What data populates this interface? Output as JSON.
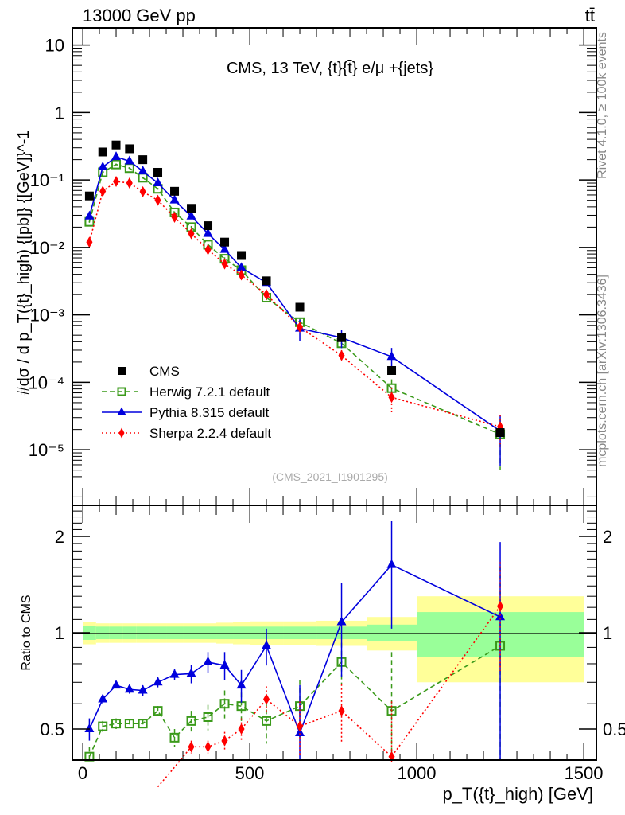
{
  "header": {
    "left": "13000 GeV pp",
    "right": "tt̄"
  },
  "side_labels": {
    "rivet": "Rivet 4.1.0, ≥ 100k events",
    "mcplots": "mcplots.cern.ch [arXiv:1306.3436]"
  },
  "chart_data": [
    {
      "type": "scatter",
      "panel": "main",
      "title": "CMS, 13 TeV, {t}{t̄} e/μ +{jets}",
      "analysis_tag": "(CMS_2021_I1901295)",
      "xlabel": "",
      "ylabel": "#dσ / d p_T({t}_high) {[pb]} {[GeV]}^-1",
      "yscale": "log",
      "xlim": [
        -31,
        1538
      ],
      "ylim": [
        1.5e-06,
        18
      ],
      "y_ticks": [
        {
          "value": 10,
          "label": "10"
        },
        {
          "value": 1,
          "label": "1"
        },
        {
          "value": 0.1,
          "label": "10⁻¹"
        },
        {
          "value": 0.01,
          "label": "10⁻²"
        },
        {
          "value": 0.001,
          "label": "10⁻³"
        },
        {
          "value": 0.0001,
          "label": "10⁻⁴"
        },
        {
          "value": 1e-05,
          "label": "10⁻⁵"
        }
      ],
      "x": [
        20,
        60,
        100,
        140,
        180,
        225,
        275,
        325,
        375,
        425,
        475,
        550,
        650,
        775,
        925,
        1250
      ],
      "legend_position": "left-lower",
      "series": [
        {
          "name": "CMS",
          "color": "#000000",
          "marker": "square",
          "line": "none",
          "values": [
            0.058,
            0.26,
            0.33,
            0.29,
            0.2,
            0.13,
            0.068,
            0.038,
            0.021,
            0.012,
            0.0076,
            0.0032,
            0.0013,
            0.00046,
            0.00015,
            1.8e-05
          ]
        },
        {
          "name": "Herwig 7.2.1 default",
          "color": "#3a9a1a",
          "marker": "open-square",
          "line": "dashed",
          "values": [
            0.024,
            0.13,
            0.17,
            0.15,
            0.108,
            0.074,
            0.033,
            0.02,
            0.011,
            0.0068,
            0.0046,
            0.0018,
            0.00078,
            0.00038,
            8.2e-05,
            1.7e-05
          ],
          "err_rel": [
            0.03,
            0.03,
            0.03,
            0.03,
            0.03,
            0.03,
            0.03,
            0.04,
            0.04,
            0.05,
            0.06,
            0.08,
            0.12,
            0.15,
            0.35,
            0.7
          ]
        },
        {
          "name": "Pythia 8.315 default",
          "color": "#0000dd",
          "marker": "triangle",
          "line": "solid",
          "values": [
            0.029,
            0.155,
            0.22,
            0.19,
            0.135,
            0.09,
            0.05,
            0.029,
            0.016,
            0.0093,
            0.005,
            0.003,
            0.00063,
            0.00046,
            0.00024,
            1.9e-05
          ],
          "err_rel": [
            0.03,
            0.03,
            0.02,
            0.02,
            0.03,
            0.03,
            0.03,
            0.04,
            0.05,
            0.07,
            0.08,
            0.1,
            0.35,
            0.3,
            0.35,
            0.7
          ]
        },
        {
          "name": "Sherpa 2.2.4 default",
          "color": "#ff0000",
          "marker": "diamond",
          "line": "dotted",
          "values": [
            0.012,
            0.068,
            0.095,
            0.09,
            0.067,
            0.05,
            0.028,
            0.016,
            0.0093,
            0.0057,
            0.0039,
            0.002,
            0.00066,
            0.00025,
            6e-05,
            2.2e-05
          ],
          "err_rel": [
            0.03,
            0.03,
            0.03,
            0.03,
            0.03,
            0.03,
            0.04,
            0.05,
            0.06,
            0.07,
            0.08,
            0.1,
            0.15,
            0.2,
            0.4,
            0.5
          ]
        }
      ]
    },
    {
      "type": "line",
      "panel": "ratio",
      "xlabel": "p_T({t}_high) [GeV]",
      "ylabel": "Ratio to CMS",
      "yscale": "log",
      "xlim": [
        -31,
        1538
      ],
      "ylim": [
        0.4,
        2.5
      ],
      "x_ticks": [
        0,
        500,
        1000,
        1500
      ],
      "y_ticks": [
        0.5,
        1,
        2
      ],
      "x": [
        20,
        60,
        100,
        140,
        180,
        225,
        275,
        325,
        375,
        425,
        475,
        550,
        650,
        775,
        925,
        1250
      ],
      "bands": {
        "bin_edges": [
          0,
          40,
          80,
          120,
          160,
          200,
          250,
          300,
          350,
          400,
          450,
          500,
          600,
          700,
          850,
          1000,
          1500
        ],
        "stat_green": [
          0.05,
          0.045,
          0.045,
          0.045,
          0.045,
          0.045,
          0.045,
          0.045,
          0.045,
          0.045,
          0.045,
          0.045,
          0.045,
          0.045,
          0.06,
          0.16
        ],
        "total_yellow": [
          0.08,
          0.07,
          0.07,
          0.07,
          0.07,
          0.07,
          0.07,
          0.07,
          0.07,
          0.075,
          0.08,
          0.085,
          0.085,
          0.09,
          0.12,
          0.3
        ],
        "green_color": "#99ff99",
        "yellow_color": "#ffff99"
      },
      "series": [
        {
          "name": "Herwig 7.2.1 default",
          "color": "#3a9a1a",
          "values": [
            0.41,
            0.51,
            0.52,
            0.52,
            0.52,
            0.57,
            0.47,
            0.53,
            0.545,
            0.6,
            0.59,
            0.53,
            0.59,
            0.81,
            0.57,
            0.91
          ],
          "err": [
            0.03,
            0.02,
            0.02,
            0.015,
            0.015,
            0.02,
            0.03,
            0.04,
            0.05,
            0.06,
            0.06,
            0.08,
            0.12,
            0.12,
            0.3,
            0.7
          ]
        },
        {
          "name": "Pythia 8.315 default",
          "color": "#0000dd",
          "values": [
            0.5,
            0.62,
            0.685,
            0.665,
            0.66,
            0.7,
            0.74,
            0.745,
            0.81,
            0.79,
            0.685,
            0.91,
            0.486,
            1.08,
            1.63,
            1.12
          ],
          "err": [
            0.04,
            0.02,
            0.015,
            0.02,
            0.025,
            0.025,
            0.03,
            0.05,
            0.06,
            0.08,
            0.08,
            0.12,
            0.2,
            0.35,
            0.6,
            0.8
          ]
        },
        {
          "name": "Sherpa 2.2.4 default",
          "color": "#ff0000",
          "values": [
            null,
            null,
            null,
            null,
            null,
            null,
            0.38,
            0.44,
            0.44,
            0.46,
            0.5,
            0.62,
            0.51,
            0.57,
            0.41,
            1.21
          ],
          "err": [
            0,
            0,
            0,
            0,
            0,
            0,
            0.02,
            0.02,
            0.02,
            0.03,
            0.04,
            0.06,
            0.1,
            0.12,
            0.2,
            0.45
          ]
        }
      ]
    }
  ]
}
